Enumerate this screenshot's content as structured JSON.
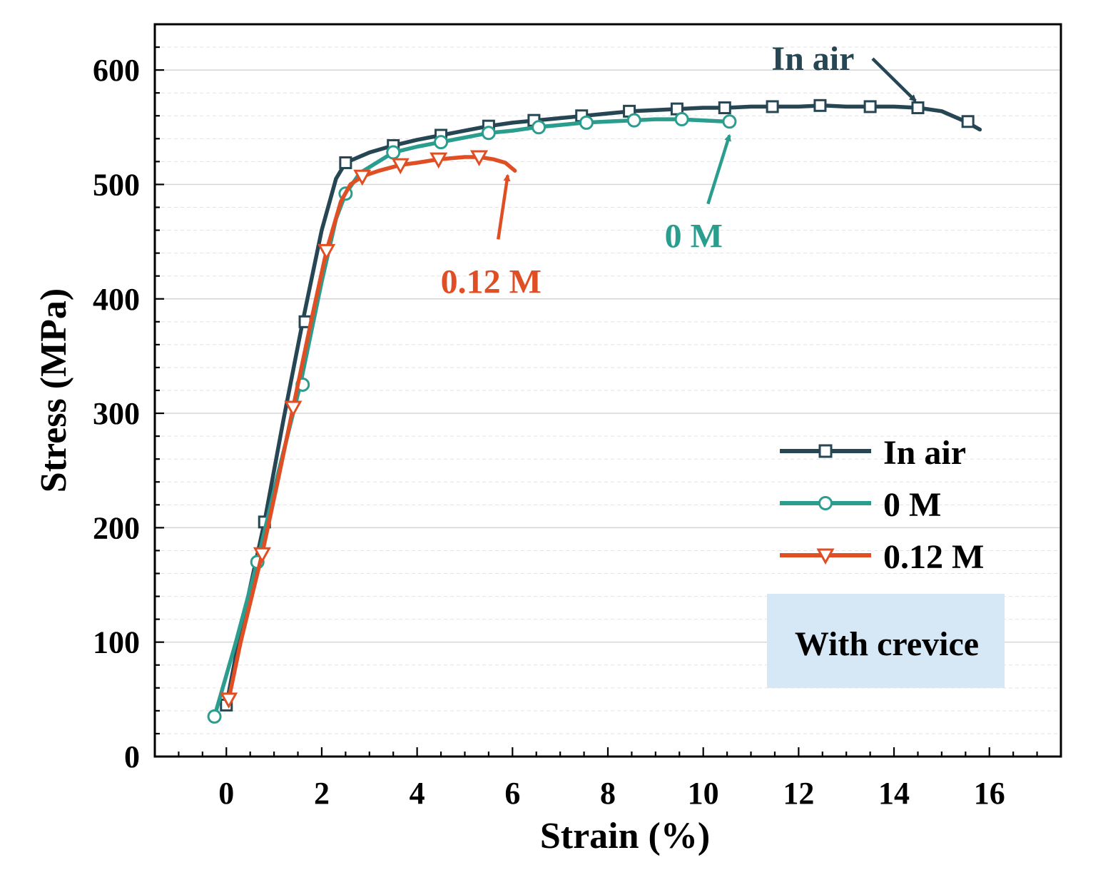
{
  "chart_data": {
    "type": "line",
    "xlabel": "Strain (%)",
    "ylabel": "Stress (MPa)",
    "xlim": [
      -1.5,
      17.5
    ],
    "ylim": [
      0,
      640
    ],
    "xticks": [
      0,
      2,
      4,
      6,
      8,
      10,
      12,
      14,
      16
    ],
    "yticks": [
      0,
      100,
      200,
      300,
      400,
      500,
      600
    ],
    "grid": "horizontal dashed",
    "legend_position": "right",
    "series": [
      {
        "name": "In air",
        "color": "#264653",
        "marker": "square",
        "x": [
          0,
          0.3,
          0.8,
          1.2,
          1.6,
          2.0,
          2.3,
          2.5,
          3.0,
          3.5,
          4.0,
          4.5,
          5.0,
          5.5,
          6.0,
          6.5,
          7.0,
          7.5,
          8.0,
          8.5,
          9.0,
          9.5,
          10.0,
          10.5,
          11.0,
          11.5,
          12.0,
          12.5,
          13.0,
          13.5,
          14.0,
          14.5,
          15.0,
          15.5,
          15.8
        ],
        "y": [
          45,
          110,
          205,
          295,
          380,
          460,
          505,
          519,
          528,
          534,
          539,
          543,
          547,
          551,
          554,
          556,
          558,
          560,
          562,
          564,
          565,
          566,
          567,
          567,
          568,
          568,
          568,
          569,
          568,
          568,
          568,
          567,
          564,
          555,
          548
        ],
        "marker_x": [
          0,
          0.8,
          1.65,
          2.5,
          3.5,
          4.5,
          5.5,
          6.45,
          7.45,
          8.45,
          9.45,
          10.45,
          11.45,
          12.45,
          13.5,
          14.5,
          15.55
        ],
        "marker_y": [
          45,
          205,
          380,
          519,
          534,
          543,
          551,
          556,
          560,
          564,
          566,
          567,
          568,
          569,
          568,
          567,
          555
        ]
      },
      {
        "name": "0 M",
        "color": "#2a9d8f",
        "marker": "circle",
        "x": [
          -0.25,
          0.2,
          0.65,
          1.1,
          1.55,
          2.0,
          2.3,
          2.5,
          2.8,
          3.5,
          4.0,
          4.5,
          5.0,
          5.5,
          6.0,
          6.5,
          7.0,
          7.5,
          8.0,
          8.5,
          9.0,
          9.5,
          10.0,
          10.5
        ],
        "y": [
          35,
          100,
          170,
          250,
          325,
          415,
          470,
          492,
          510,
          528,
          533,
          537,
          541,
          545,
          547,
          550,
          552,
          554,
          555,
          556,
          557,
          557,
          556,
          555
        ],
        "marker_x": [
          -0.25,
          0.65,
          1.6,
          2.5,
          3.5,
          4.5,
          5.5,
          6.55,
          7.55,
          8.55,
          9.55,
          10.55
        ],
        "marker_y": [
          35,
          170,
          325,
          492,
          528,
          537,
          545,
          550,
          554,
          556,
          557,
          555
        ]
      },
      {
        "name": "0.12 M",
        "color": "#e04e24",
        "marker": "triangle-down",
        "x": [
          0.05,
          0.3,
          0.75,
          1.1,
          1.4,
          1.8,
          2.1,
          2.4,
          2.6,
          2.85,
          3.2,
          3.65,
          4.0,
          4.45,
          5.0,
          5.3,
          5.6,
          5.85,
          6.05
        ],
        "y": [
          50,
          100,
          177,
          245,
          305,
          385,
          442,
          485,
          500,
          507,
          512,
          517,
          519,
          522,
          524,
          524,
          522,
          519,
          512
        ],
        "marker_x": [
          0.05,
          0.75,
          1.4,
          2.1,
          2.85,
          3.65,
          4.45,
          5.3
        ],
        "marker_y": [
          50,
          177,
          305,
          442,
          507,
          517,
          522,
          524
        ]
      }
    ],
    "annotations": [
      {
        "text": "In air",
        "color": "#264653",
        "text_x": 12.3,
        "text_y": 610,
        "arrow_from": [
          13.55,
          610
        ],
        "arrow_to": [
          14.45,
          573
        ]
      },
      {
        "text": "0 M",
        "color": "#2a9d8f",
        "text_x": 9.8,
        "text_y": 455,
        "arrow_from": [
          10.1,
          483
        ],
        "arrow_to": [
          10.55,
          543
        ]
      },
      {
        "text": "0.12 M",
        "color": "#e04e24",
        "text_x": 5.55,
        "text_y": 415,
        "arrow_from": [
          5.7,
          452
        ],
        "arrow_to": [
          5.9,
          508
        ]
      }
    ],
    "box_label": "With crevice",
    "box_color": "#d6e7f5"
  }
}
